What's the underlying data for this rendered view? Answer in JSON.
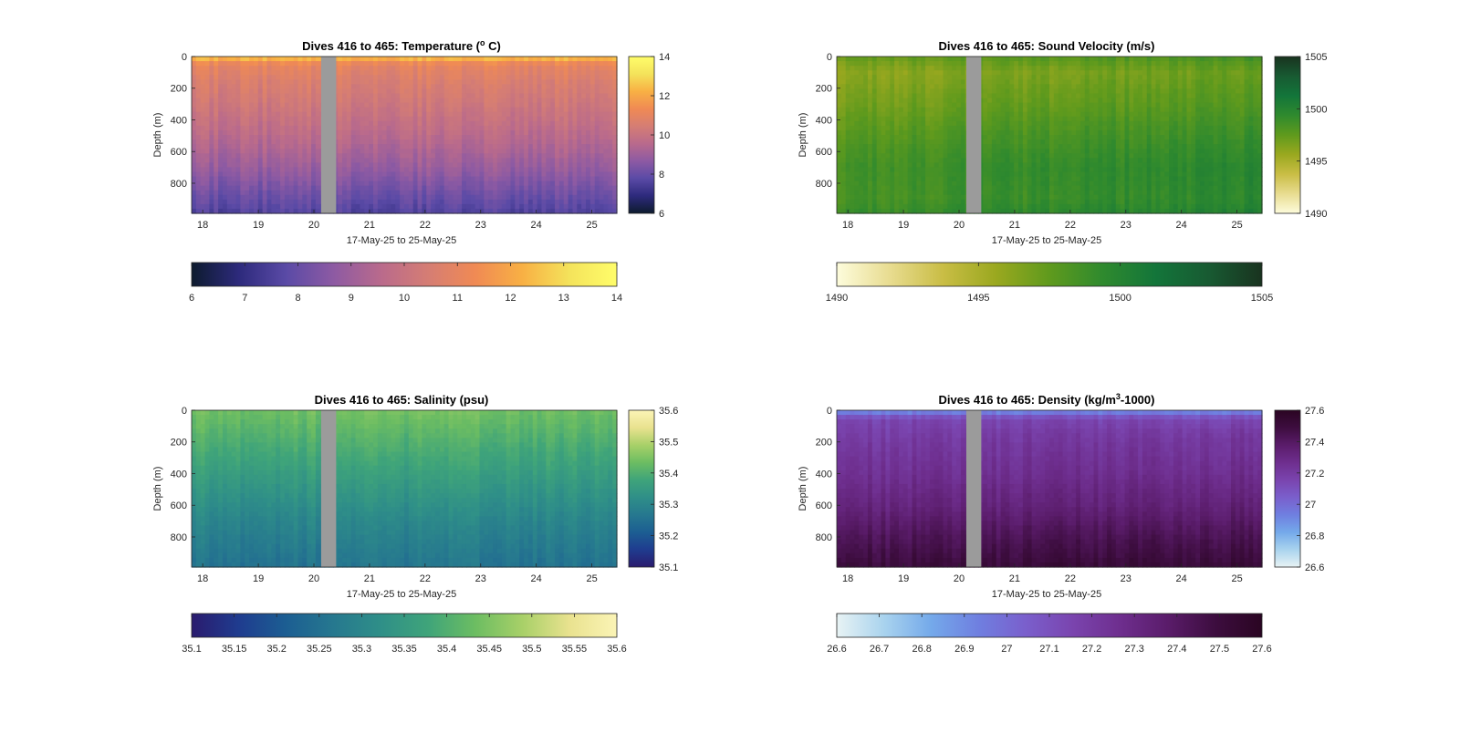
{
  "chart_data": [
    {
      "type": "heatmap",
      "key": "temp",
      "title_text": "Dives 416 to 465: Temperature (",
      "title_sup": "o",
      "title_end": " C)",
      "xlabel": "17-May-25 to 25-May-25",
      "ylabel": "Depth (m)",
      "x_ticks": [
        "18",
        "19",
        "20",
        "21",
        "22",
        "23",
        "24",
        "25"
      ],
      "x_tick_values": [
        18,
        19,
        20,
        21,
        22,
        23,
        24,
        25
      ],
      "xlim": [
        17.8,
        25.45
      ],
      "y_ticks": [
        "0",
        "200",
        "400",
        "600",
        "800"
      ],
      "y_tick_values": [
        0,
        200,
        400,
        600,
        800
      ],
      "ylim": [
        0,
        990
      ],
      "clim": [
        6,
        14
      ],
      "colorbar_ticks": [
        "6",
        "8",
        "10",
        "12",
        "14"
      ],
      "hcolorbar_ticks": [
        "6",
        "7",
        "8",
        "9",
        "10",
        "11",
        "12",
        "13",
        "14"
      ],
      "colormap": [
        "#0d1b2e",
        "#2d2a7c",
        "#5a4aa6",
        "#8d5aa3",
        "#b96a8c",
        "#d57d74",
        "#f08a54",
        "#f8b044",
        "#f4e35b",
        "#fffd6a"
      ],
      "profile_depth": [
        0,
        15,
        50,
        150,
        300,
        500,
        700,
        850,
        990
      ],
      "profile_value": [
        12.6,
        12.2,
        11.0,
        10.6,
        10.2,
        9.6,
        8.9,
        8.2,
        7.6
      ],
      "gap_days": [
        20.13,
        20.4
      ]
    },
    {
      "type": "heatmap",
      "key": "sv",
      "title_text": "Dives 416 to 465: Sound Velocity (m/s)",
      "title_sup": "",
      "title_end": "",
      "xlabel": "17-May-25 to 25-May-25",
      "ylabel": "Depth (m)",
      "x_ticks": [
        "18",
        "19",
        "20",
        "21",
        "22",
        "23",
        "24",
        "25"
      ],
      "x_tick_values": [
        18,
        19,
        20,
        21,
        22,
        23,
        24,
        25
      ],
      "xlim": [
        17.8,
        25.45
      ],
      "y_ticks": [
        "0",
        "200",
        "400",
        "600",
        "800"
      ],
      "y_tick_values": [
        0,
        200,
        400,
        600,
        800
      ],
      "ylim": [
        0,
        990
      ],
      "clim": [
        1490,
        1505
      ],
      "colorbar_ticks": [
        "1490",
        "1495",
        "1500",
        "1505"
      ],
      "hcolorbar_ticks": [
        "1490",
        "1495",
        "1500",
        "1505"
      ],
      "colormap": [
        "#fdfcdc",
        "#e8dc90",
        "#c9bd45",
        "#9aa81f",
        "#5f9a1d",
        "#2f8a2e",
        "#13753a",
        "#185a32",
        "#19331f"
      ],
      "profile_depth": [
        0,
        15,
        100,
        300,
        500,
        700,
        900,
        990
      ],
      "profile_value": [
        1499.8,
        1497.0,
        1496.0,
        1496.8,
        1497.8,
        1498.6,
        1498.4,
        1499.0
      ],
      "gap_days": [
        20.13,
        20.4
      ]
    },
    {
      "type": "heatmap",
      "key": "sal",
      "title_text": "Dives 416 to 465: Salinity (psu)",
      "title_sup": "",
      "title_end": "",
      "xlabel": "17-May-25 to 25-May-25",
      "ylabel": "Depth (m)",
      "x_ticks": [
        "18",
        "19",
        "20",
        "21",
        "22",
        "23",
        "24",
        "25"
      ],
      "x_tick_values": [
        18,
        19,
        20,
        21,
        22,
        23,
        24,
        25
      ],
      "xlim": [
        17.8,
        25.45
      ],
      "y_ticks": [
        "0",
        "200",
        "400",
        "600",
        "800"
      ],
      "y_tick_values": [
        0,
        200,
        400,
        600,
        800
      ],
      "ylim": [
        0,
        990
      ],
      "clim": [
        35.1,
        35.6
      ],
      "colorbar_ticks": [
        "35.1",
        "35.2",
        "35.3",
        "35.4",
        "35.5",
        "35.6"
      ],
      "hcolorbar_ticks": [
        "35.1",
        "35.15",
        "35.2",
        "35.25",
        "35.3",
        "35.35",
        "35.4",
        "35.45",
        "35.5",
        "35.55",
        "35.6"
      ],
      "colormap": [
        "#2a1b6e",
        "#1f3c8f",
        "#1c5e92",
        "#26788f",
        "#2f8f88",
        "#3fa47a",
        "#6cbd62",
        "#a8d068",
        "#e9e28f",
        "#fbf4b6"
      ],
      "profile_depth": [
        0,
        100,
        300,
        500,
        700,
        900,
        990
      ],
      "profile_value": [
        35.44,
        35.42,
        35.38,
        35.34,
        35.3,
        35.27,
        35.26
      ],
      "gap_days": [
        20.13,
        20.4
      ]
    },
    {
      "type": "heatmap",
      "key": "dens",
      "title_text": "Dives 416 to 465: Density (kg/m",
      "title_sup": "3",
      "title_end": "-1000)",
      "xlabel": "17-May-25 to 25-May-25",
      "ylabel": "Depth (m)",
      "x_ticks": [
        "18",
        "19",
        "20",
        "21",
        "22",
        "23",
        "24",
        "25"
      ],
      "x_tick_values": [
        18,
        19,
        20,
        21,
        22,
        23,
        24,
        25
      ],
      "xlim": [
        17.8,
        25.45
      ],
      "y_ticks": [
        "0",
        "200",
        "400",
        "600",
        "800"
      ],
      "y_tick_values": [
        0,
        200,
        400,
        600,
        800
      ],
      "ylim": [
        0,
        990
      ],
      "clim": [
        26.6,
        27.6
      ],
      "colorbar_ticks": [
        "26.6",
        "26.8",
        "27",
        "27.2",
        "27.4",
        "27.6"
      ],
      "hcolorbar_ticks": [
        "26.6",
        "26.7",
        "26.8",
        "26.9",
        "27",
        "27.1",
        "27.2",
        "27.3",
        "27.4",
        "27.5",
        "27.6"
      ],
      "colormap": [
        "#e8f3f4",
        "#a9d3ee",
        "#74a9ea",
        "#6f7fe0",
        "#7a5fcc",
        "#7a44ae",
        "#6e2e8e",
        "#5a1c6a",
        "#3d0d3f",
        "#2a0522"
      ],
      "profile_depth": [
        0,
        20,
        60,
        200,
        400,
        600,
        800,
        990
      ],
      "profile_value": [
        26.8,
        27.0,
        27.15,
        27.2,
        27.25,
        27.32,
        27.42,
        27.5
      ],
      "gap_days": [
        20.13,
        20.4
      ]
    }
  ]
}
